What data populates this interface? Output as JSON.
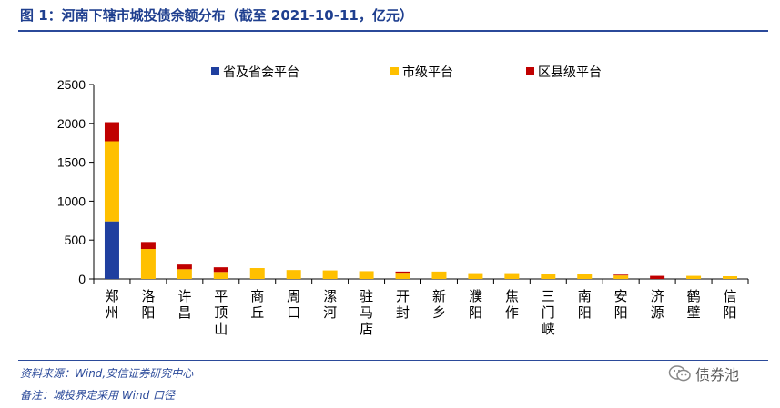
{
  "title": "图 1：河南下辖市城投债余额分布（截至 2021-10-11，亿元）",
  "footer": {
    "source": "资料来源：Wind,安信证券研究中心",
    "note": "备注：城投界定采用 Wind 口径"
  },
  "watermark": {
    "text": "债券池",
    "icon": "wechat-icon"
  },
  "chart_data": {
    "type": "bar",
    "stacked": true,
    "title": "",
    "xlabel": "",
    "ylabel": "",
    "ylim": [
      0,
      2500
    ],
    "yticks": [
      "0",
      "500",
      "1000",
      "1500",
      "2000",
      "2500"
    ],
    "legend_position": "top",
    "categories": [
      "郑州",
      "洛阳",
      "许昌",
      "平顶山",
      "商丘",
      "周口",
      "漯河",
      "驻马店",
      "开封",
      "新乡",
      "濮阳",
      "焦作",
      "三门峡",
      "南阳",
      "安阳",
      "济源",
      "鹤壁",
      "信阳"
    ],
    "series": [
      {
        "name": "省及省会平台",
        "color": "#1f3f9f",
        "values": [
          740,
          0,
          0,
          0,
          0,
          0,
          0,
          0,
          0,
          0,
          0,
          0,
          0,
          0,
          0,
          0,
          0,
          0
        ]
      },
      {
        "name": "市级平台",
        "color": "#ffc000",
        "values": [
          1030,
          385,
          125,
          90,
          140,
          115,
          110,
          100,
          80,
          95,
          75,
          75,
          65,
          60,
          45,
          0,
          40,
          35
        ]
      },
      {
        "name": "区县级平台",
        "color": "#c00000",
        "values": [
          245,
          90,
          60,
          60,
          0,
          0,
          0,
          0,
          15,
          0,
          0,
          0,
          0,
          0,
          10,
          40,
          0,
          0
        ]
      }
    ]
  }
}
